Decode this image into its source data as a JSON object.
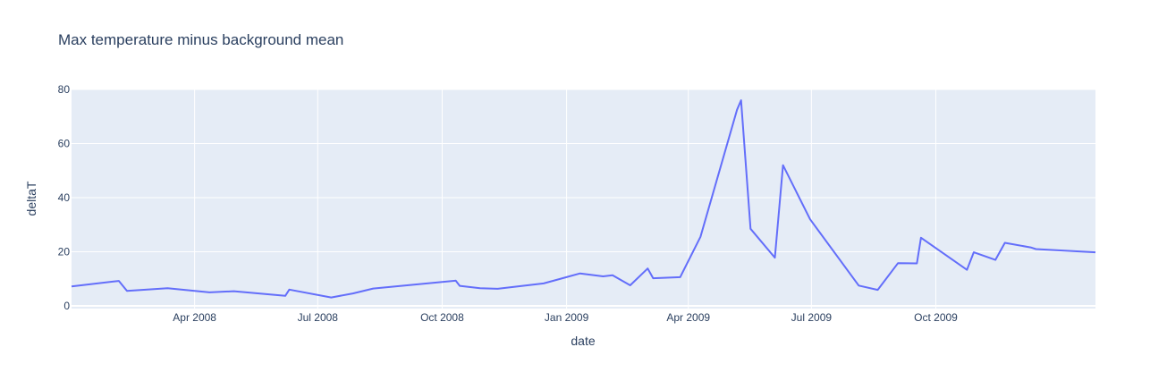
{
  "chart_data": {
    "type": "line",
    "title": "Max temperature minus background mean",
    "xlabel": "date",
    "ylabel": "deltaT",
    "xlim": [
      "2008-01-01",
      "2010-01-27"
    ],
    "ylim": [
      -1,
      80
    ],
    "x_ticks": [
      {
        "date": "2008-04-01",
        "label": "Apr 2008"
      },
      {
        "date": "2008-07-01",
        "label": "Jul 2008"
      },
      {
        "date": "2008-10-01",
        "label": "Oct 2008"
      },
      {
        "date": "2009-01-01",
        "label": "Jan 2009"
      },
      {
        "date": "2009-04-01",
        "label": "Apr 2009"
      },
      {
        "date": "2009-07-01",
        "label": "Jul 2009"
      },
      {
        "date": "2009-10-01",
        "label": "Oct 2009"
      }
    ],
    "y_ticks": [
      0,
      20,
      40,
      60,
      80
    ],
    "grid": true,
    "colors": {
      "line": "#636efa",
      "plot_bg": "#e5ecf6",
      "grid": "#ffffff",
      "text": "#2a3f5f"
    },
    "series": [
      {
        "x": [
          "2008-01-01",
          "2008-02-05",
          "2008-02-11",
          "2008-03-12",
          "2008-04-12",
          "2008-04-30",
          "2008-06-07",
          "2008-06-10",
          "2008-07-11",
          "2008-07-27",
          "2008-08-11",
          "2008-10-11",
          "2008-10-14",
          "2008-10-29",
          "2008-11-11",
          "2008-12-15",
          "2009-01-11",
          "2009-01-28",
          "2009-02-04",
          "2009-02-17",
          "2009-03-02",
          "2009-03-06",
          "2009-03-26",
          "2009-04-10",
          "2009-05-07",
          "2009-05-10",
          "2009-05-17",
          "2009-06-04",
          "2009-06-10",
          "2009-06-30",
          "2009-08-05",
          "2009-08-19",
          "2009-09-03",
          "2009-09-17",
          "2009-09-20",
          "2009-10-24",
          "2009-10-29",
          "2009-11-14",
          "2009-11-21",
          "2009-12-10",
          "2009-12-14",
          "2010-01-27"
        ],
        "y": [
          7.2,
          9.2,
          5.5,
          6.5,
          5.0,
          5.4,
          3.7,
          6.0,
          3.1,
          4.6,
          6.4,
          9.3,
          7.4,
          6.5,
          6.3,
          8.3,
          12.0,
          10.9,
          11.3,
          7.6,
          13.8,
          10.2,
          10.6,
          25.5,
          72.5,
          76.0,
          28.5,
          17.8,
          52.0,
          32.0,
          7.5,
          5.9,
          15.8,
          15.7,
          25.2,
          13.3,
          19.8,
          17.0,
          23.3,
          21.6,
          21.0,
          19.8
        ]
      }
    ]
  }
}
